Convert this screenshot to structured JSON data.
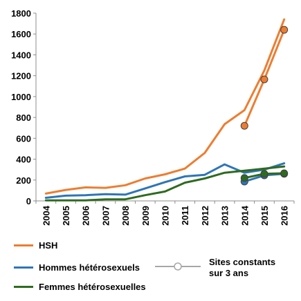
{
  "chart_data": {
    "type": "line",
    "categories": [
      "2004",
      "2005",
      "2006",
      "2007",
      "2008",
      "2009",
      "2010",
      "2011",
      "2012",
      "2013",
      "2014",
      "2015",
      "2016"
    ],
    "ylim": [
      0,
      1800
    ],
    "yticks": [
      0,
      200,
      400,
      600,
      800,
      1000,
      1200,
      1400,
      1600,
      1800
    ],
    "grid": false,
    "legend_position": "bottom",
    "series": [
      {
        "name": "HSH",
        "color": "#ed7d31",
        "values": [
          70,
          105,
          130,
          125,
          150,
          215,
          255,
          310,
          460,
          735,
          870,
          1250,
          1740
        ]
      },
      {
        "name": "Hommes hétérosexuels",
        "color": "#2e75b6",
        "values": [
          30,
          50,
          55,
          65,
          60,
          120,
          180,
          235,
          250,
          350,
          270,
          300,
          360
        ]
      },
      {
        "name": "Femmes hétérosexuelles",
        "color": "#2e6b1f",
        "values": [
          5,
          5,
          5,
          15,
          15,
          55,
          90,
          175,
          215,
          270,
          290,
          310,
          330
        ]
      }
    ],
    "constant_sites": {
      "label_line1": "Sites constants",
      "label_line2": "sur 3 ans",
      "color": "#a6a6a6",
      "categories": [
        "2014",
        "2015",
        "2016"
      ],
      "series": [
        {
          "name": "HSH",
          "color": "#ed7d31",
          "values": [
            720,
            1165,
            1640
          ]
        },
        {
          "name": "Hommes hétérosexuels",
          "color": "#2e75b6",
          "values": [
            185,
            245,
            260
          ]
        },
        {
          "name": "Femmes hétérosexuelles",
          "color": "#2e6b1f",
          "values": [
            220,
            260,
            265
          ]
        }
      ]
    }
  }
}
